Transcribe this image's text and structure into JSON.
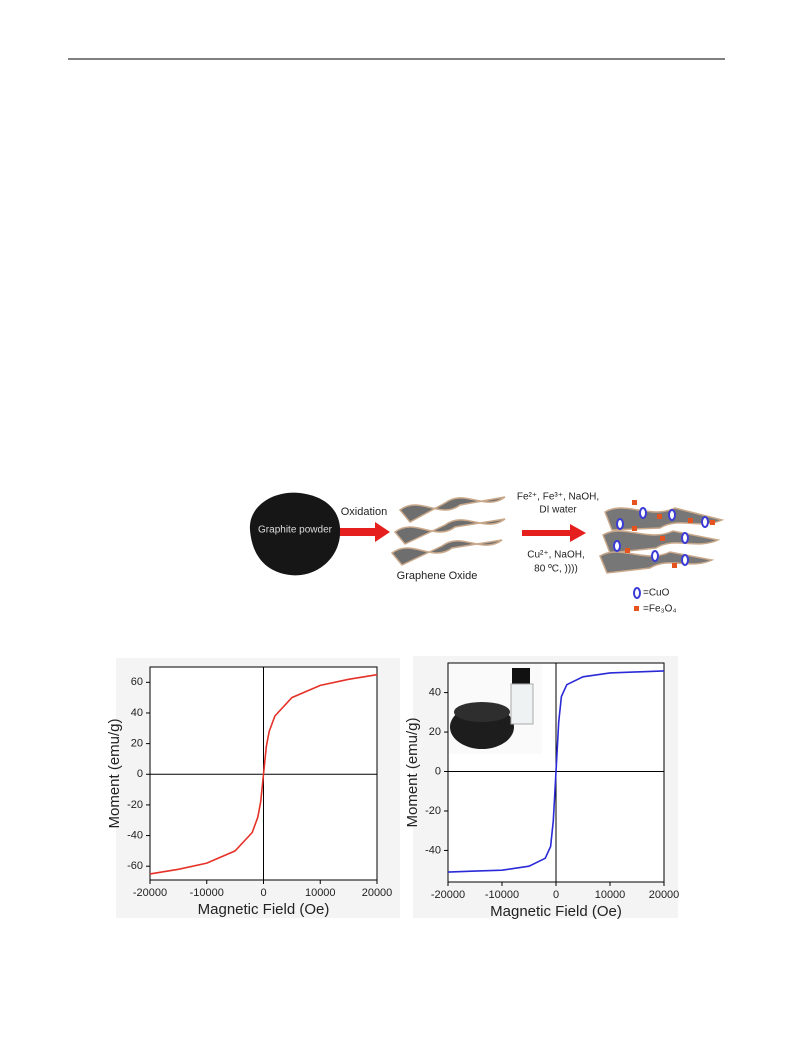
{
  "scheme": {
    "graphite": "Graphite powder",
    "step1": "Oxidation",
    "go": "Graphene Oxide",
    "reagents1": "Fe²⁺, Fe³⁺, NaOH,",
    "reagents2": "DI water",
    "reagents3": "Cu²⁺, NaOH,",
    "reagents4": "80 ºC, ))))",
    "legend_cuo": "=CuO",
    "legend_fe": "=Fe₃O₄"
  },
  "chart_data": [
    {
      "type": "line",
      "xlabel": "Magnetic Field (Oe)",
      "ylabel": "Moment (emu/g)",
      "x": [
        -20000,
        -15000,
        -10000,
        -5000,
        -2000,
        -1000,
        -500,
        0,
        500,
        1000,
        2000,
        5000,
        10000,
        15000,
        20000
      ],
      "series": [
        {
          "color": "#e53228",
          "values": [
            -65,
            -62,
            -58,
            -50,
            -38,
            -28,
            -18,
            0,
            18,
            28,
            38,
            50,
            58,
            62,
            65
          ]
        }
      ],
      "xlim": [
        -20000,
        20000
      ],
      "xticks": [
        -20000,
        -10000,
        0,
        10000,
        20000
      ],
      "ylim": [
        -69,
        70
      ],
      "yticks": [
        -60,
        -40,
        -20,
        0,
        20,
        40,
        60
      ]
    },
    {
      "type": "line",
      "xlabel": "Magnetic Field (Oe)",
      "ylabel": "Moment (emu/g)",
      "x": [
        -20000,
        -15000,
        -10000,
        -5000,
        -2000,
        -1000,
        -500,
        0,
        500,
        1000,
        2000,
        5000,
        10000,
        15000,
        20000
      ],
      "series": [
        {
          "color": "#2a2ad8",
          "values": [
            -51,
            -50.5,
            -50,
            -48,
            -44,
            -38,
            -25,
            0,
            25,
            38,
            44,
            48,
            50,
            50.5,
            51
          ]
        }
      ],
      "xlim": [
        -20000,
        20000
      ],
      "xticks": [
        -20000,
        -10000,
        0,
        10000,
        20000
      ],
      "ylim": [
        -56,
        55
      ],
      "yticks": [
        -40,
        -20,
        0,
        20,
        40
      ]
    }
  ]
}
